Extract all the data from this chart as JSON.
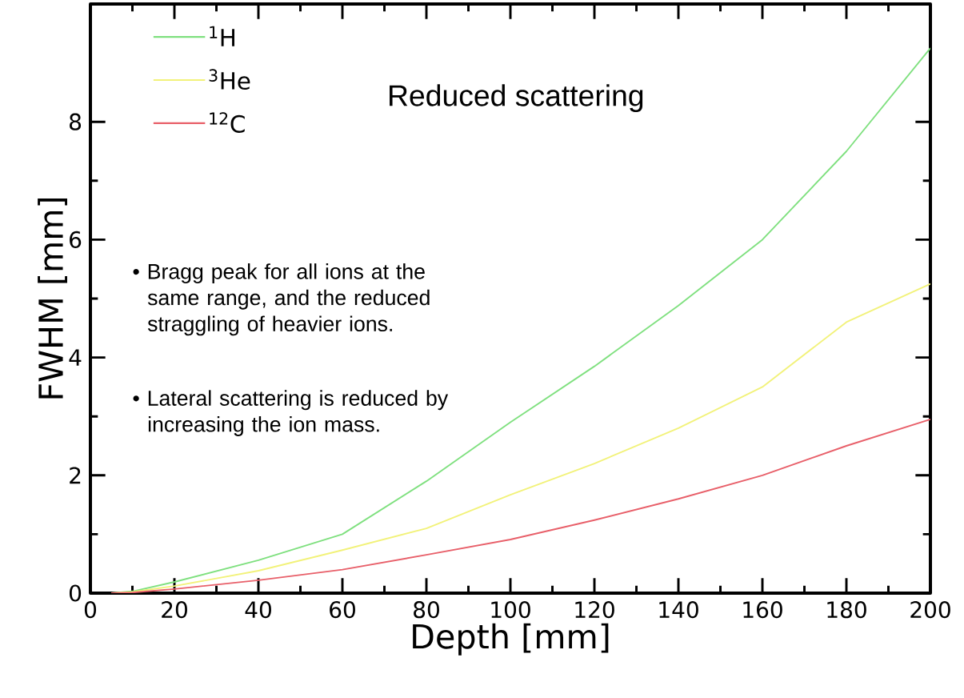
{
  "chart_data": {
    "type": "line",
    "title": "Reduced scattering",
    "xlabel": "Depth  [mm]",
    "ylabel": "FWHM   [mm]",
    "annotations": [
      "• Bragg peak for all ions at the same range, and the reduced straggling of heavier ions.",
      "• Lateral scattering is reduced by increasing the ion mass."
    ],
    "x": [
      5,
      10,
      20,
      40,
      60,
      80,
      100,
      120,
      140,
      160,
      180,
      200
    ],
    "series": [
      {
        "name": "$^{1}$H",
        "color": "#7fe07f",
        "values": [
          0,
          0.03,
          0.19,
          0.56,
          1.0,
          1.9,
          2.9,
          3.85,
          4.88,
          6.0,
          7.5,
          9.25
        ]
      },
      {
        "name": "$^{3}$He",
        "color": "#f2f27a",
        "values": [
          0,
          0.02,
          0.12,
          0.38,
          0.73,
          1.1,
          1.67,
          2.2,
          2.8,
          3.5,
          4.6,
          5.25
        ]
      },
      {
        "name": "$^{12}$C",
        "color": "#e8606a",
        "values": [
          0,
          0.01,
          0.07,
          0.22,
          0.4,
          0.65,
          0.91,
          1.24,
          1.6,
          2.0,
          2.5,
          2.95
        ]
      }
    ],
    "xlim": [
      0,
      200
    ],
    "xticks": [
      0,
      20,
      40,
      60,
      80,
      100,
      120,
      140,
      160,
      180,
      200
    ],
    "ylim": [
      0,
      10
    ],
    "yticks": [
      0,
      2,
      4,
      6,
      8
    ],
    "grid": false,
    "legend": "top left",
    "line_style": "solid"
  }
}
